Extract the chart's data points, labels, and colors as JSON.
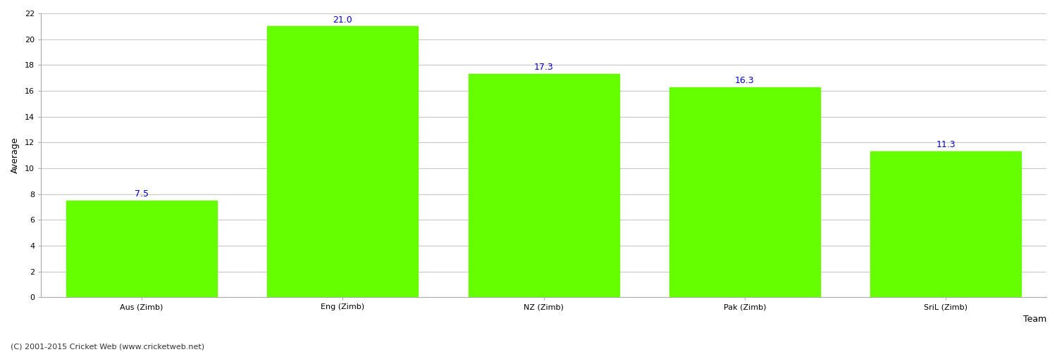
{
  "categories": [
    "Aus (Zimb)",
    "Eng (Zimb)",
    "NZ (Zimb)",
    "Pak (Zimb)",
    "SriL (Zimb)"
  ],
  "values": [
    7.5,
    21.0,
    17.3,
    16.3,
    11.3
  ],
  "bar_color": "#66ff00",
  "bar_edge_color": "#66ff00",
  "label_color": "#0000cc",
  "xlabel": "Team",
  "ylabel": "Average",
  "ylim": [
    0,
    22
  ],
  "yticks": [
    0,
    2,
    4,
    6,
    8,
    10,
    12,
    14,
    16,
    18,
    20,
    22
  ],
  "grid_color": "#c8c8c8",
  "background_color": "#ffffff",
  "label_fontsize": 9,
  "axis_label_fontsize": 9,
  "tick_label_fontsize": 8,
  "footer_text": "(C) 2001-2015 Cricket Web (www.cricketweb.net)",
  "footer_fontsize": 8,
  "footer_color": "#333333",
  "bar_width": 0.75
}
